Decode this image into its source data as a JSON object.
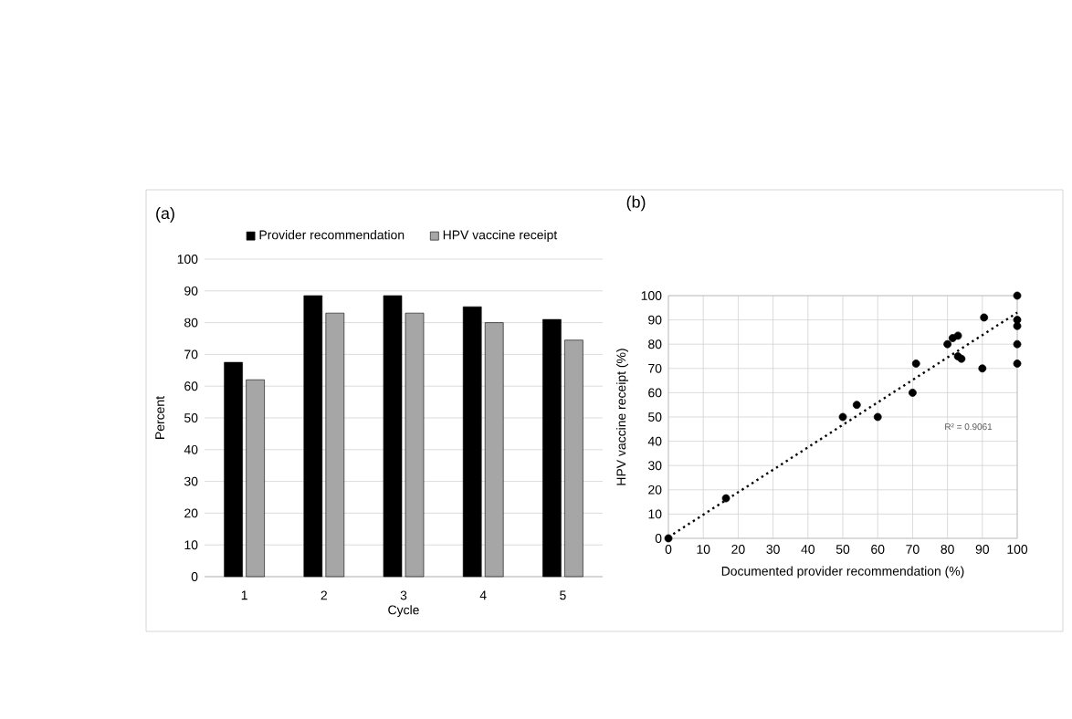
{
  "chart_data": [
    {
      "type": "bar",
      "title": "(a)",
      "xlabel": "Cycle",
      "ylabel": "Percent",
      "categories": [
        "1",
        "2",
        "3",
        "4",
        "5"
      ],
      "series": [
        {
          "name": "Provider recommendation",
          "color": "#000000",
          "values": [
            67.5,
            88.5,
            88.5,
            85,
            81
          ]
        },
        {
          "name": "HPV vaccine receipt",
          "color": "#a6a6a6",
          "values": [
            62,
            83,
            83,
            80,
            74.5
          ]
        }
      ],
      "ylim": [
        0,
        100
      ],
      "yticks": [
        0,
        10,
        20,
        30,
        40,
        50,
        60,
        70,
        80,
        90,
        100
      ],
      "grid": "y",
      "legend": "top"
    },
    {
      "type": "scatter",
      "title": "(b)",
      "xlabel": "Documented provider recommendation (%)",
      "ylabel": "HPV vaccine receipt (%)",
      "series": [
        {
          "color": "#000000",
          "x": [
            0,
            16.5,
            50,
            54,
            60,
            70,
            71,
            80,
            81.5,
            83,
            83,
            84,
            90,
            90.5,
            100,
            100,
            100,
            100,
            100
          ],
          "values": [
            0,
            16.5,
            50,
            55,
            50,
            60,
            72,
            80,
            82.5,
            83.5,
            75,
            74,
            70,
            91,
            100,
            90,
            87.5,
            80,
            72
          ],
          "marker": "circle"
        },
        {
          "type": "line",
          "color": "#000000",
          "x": [
            0,
            100
          ],
          "values": [
            0.5,
            93
          ],
          "line_style": "dotted",
          "marker": "none"
        }
      ],
      "annotations": [
        "R² = 0.9061"
      ],
      "xlim": [
        0,
        100
      ],
      "ylim": [
        0,
        100
      ],
      "xticks": [
        0,
        10,
        20,
        30,
        40,
        50,
        60,
        70,
        80,
        90,
        100
      ],
      "yticks": [
        0,
        10,
        20,
        30,
        40,
        50,
        60,
        70,
        80,
        90,
        100
      ],
      "grid": true
    }
  ]
}
